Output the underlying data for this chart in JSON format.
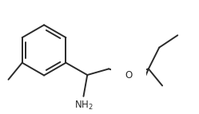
{
  "bg_color": "#ffffff",
  "line_color": "#2a2a2a",
  "line_width": 1.4,
  "font_size": 8.5,
  "figsize": [
    2.49,
    1.43
  ],
  "dpi": 100,
  "xlim": [
    0,
    249
  ],
  "ylim": [
    0,
    143
  ]
}
